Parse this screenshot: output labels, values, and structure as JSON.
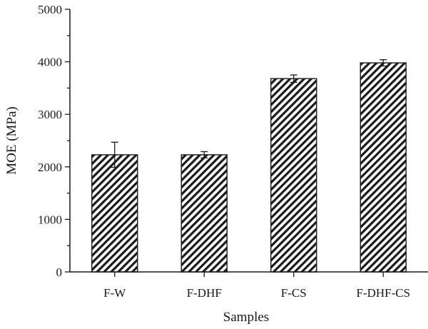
{
  "chart_data": {
    "type": "bar",
    "categories": [
      "F-W",
      "F-DHF",
      "F-CS",
      "F-DHF-CS"
    ],
    "values": [
      2230,
      2230,
      3680,
      3980
    ],
    "errors": [
      240,
      60,
      70,
      60
    ],
    "xlabel": "Samples",
    "ylabel": "MOE (MPa)",
    "ylim": [
      0,
      5000
    ],
    "yticks": [
      0,
      1000,
      2000,
      3000,
      4000,
      5000
    ],
    "grid": false,
    "pattern": "diagonal-hatch",
    "bar_color": "#1a1a1a"
  }
}
